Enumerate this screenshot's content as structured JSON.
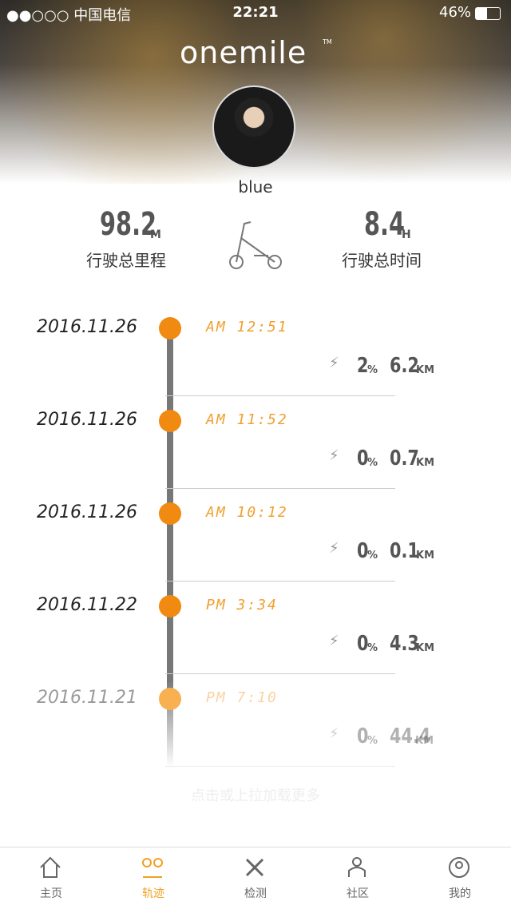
{
  "status_bar": {
    "carrier": "●●○○○ 中国电信",
    "time": "22:21",
    "battery": "46%"
  },
  "header": {
    "logo": "onemile",
    "trademark": "TM",
    "username": "blue"
  },
  "stats": [
    {
      "value": "98.2",
      "unit": "M",
      "label": "行驶总里程"
    },
    {
      "value": "8.4",
      "unit": "H",
      "label": "行驶总时间"
    }
  ],
  "trips": [
    {
      "date": "2016.11.26",
      "time": "AM 12:51",
      "battery": "2",
      "battery_unit": "%",
      "distance": "6.2",
      "distance_unit": "KM"
    },
    {
      "date": "2016.11.26",
      "time": "AM 11:52",
      "battery": "0",
      "battery_unit": "%",
      "distance": "0.7",
      "distance_unit": "KM"
    },
    {
      "date": "2016.11.26",
      "time": "AM 10:12",
      "battery": "0",
      "battery_unit": "%",
      "distance": "0.1",
      "distance_unit": "KM"
    },
    {
      "date": "2016.11.22",
      "time": "PM 3:34",
      "battery": "0",
      "battery_unit": "%",
      "distance": "4.3",
      "distance_unit": "KM"
    },
    {
      "date": "2016.11.21",
      "time": "PM 7:10",
      "battery": "0",
      "battery_unit": "%",
      "distance": "44.4",
      "distance_unit": "KM"
    }
  ],
  "load_more": "点击或上拉加载更多",
  "tabs": [
    "主页",
    "轨迹",
    "检测",
    "社区",
    "我的"
  ],
  "active_tab": 1
}
